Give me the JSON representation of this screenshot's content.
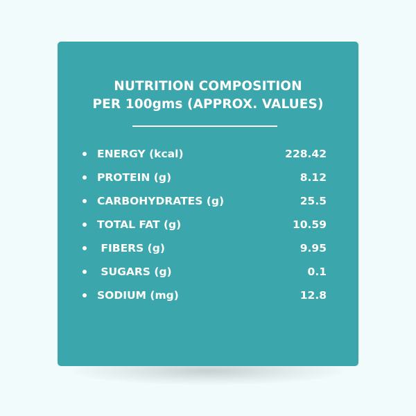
{
  "card": {
    "title_line1": "NUTRITION COMPOSITION",
    "title_line2": "PER 100gms (APPROX. VALUES)"
  },
  "nutrients": [
    {
      "label": "ENERGY (kcal)",
      "value": "228.42"
    },
    {
      "label": "PROTEIN (g)",
      "value": "8.12"
    },
    {
      "label": "CARBOHYDRATES (g)",
      "value": "25.5"
    },
    {
      "label": "TOTAL FAT (g)",
      "value": "10.59"
    },
    {
      "label": " FIBERS (g)",
      "value": "9.95"
    },
    {
      "label": " SUGARS (g)",
      "value": "0.1"
    },
    {
      "label": "SODIUM (mg)",
      "value": "12.8"
    }
  ],
  "colors": {
    "card_background": "#3ba6ac",
    "page_background": "#f1fbfb",
    "text": "#ffffff"
  }
}
